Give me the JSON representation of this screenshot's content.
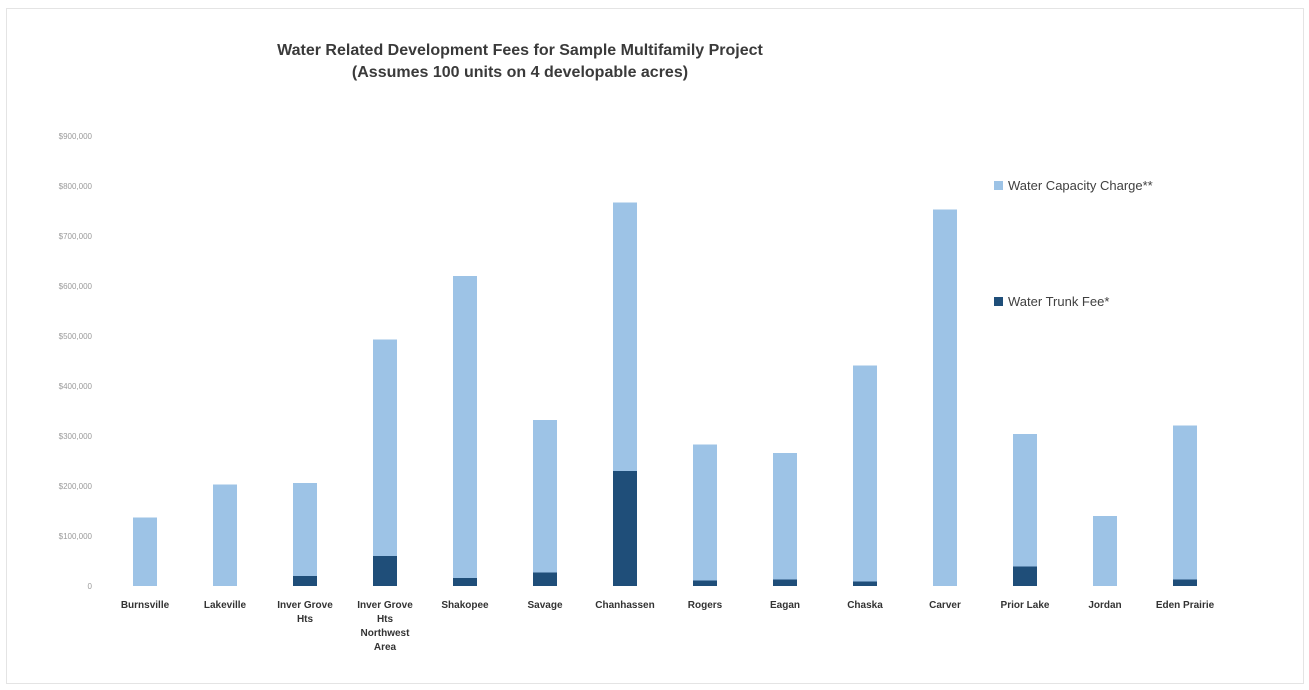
{
  "chart_data": {
    "type": "bar",
    "stacked": true,
    "title": "Water Related Development Fees for Sample Multifamily Project",
    "subtitle": "(Assumes 100 units on 4 developable acres)",
    "xlabel": "",
    "ylabel": "",
    "ylim": [
      0,
      900000
    ],
    "yticks": [
      0,
      100000,
      200000,
      300000,
      400000,
      500000,
      600000,
      700000,
      800000,
      900000
    ],
    "ytick_labels": [
      "0",
      "$100,000",
      "$200,000",
      "$300,000",
      "$400,000",
      "$500,000",
      "$600,000",
      "$700,000",
      "$800,000",
      "$900,000"
    ],
    "grid": false,
    "legend_position": "right",
    "categories": [
      [
        "Burnsville"
      ],
      [
        "Lakeville"
      ],
      [
        "Inver Grove",
        "Hts"
      ],
      [
        "Inver Grove",
        "Hts",
        "Northwest",
        "Area"
      ],
      [
        "Shakopee"
      ],
      [
        "Savage"
      ],
      [
        "Chanhassen"
      ],
      [
        "Rogers"
      ],
      [
        "Eagan"
      ],
      [
        "Chaska"
      ],
      [
        "Carver"
      ],
      [
        "Prior Lake"
      ],
      [
        "Jordan"
      ],
      [
        "Eden Prairie"
      ]
    ],
    "series": [
      {
        "name": "Water Trunk Fee*",
        "color": "#1f4e79",
        "values": [
          0,
          0,
          20000,
          60000,
          16000,
          27000,
          230000,
          11000,
          13000,
          9000,
          0,
          39000,
          0,
          13000
        ]
      },
      {
        "name": "Water Capacity Charge**",
        "color": "#9dc3e6",
        "values": [
          137000,
          203000,
          186000,
          433000,
          604000,
          305000,
          537000,
          272000,
          253000,
          432000,
          753000,
          265000,
          140000,
          308000
        ]
      }
    ]
  }
}
